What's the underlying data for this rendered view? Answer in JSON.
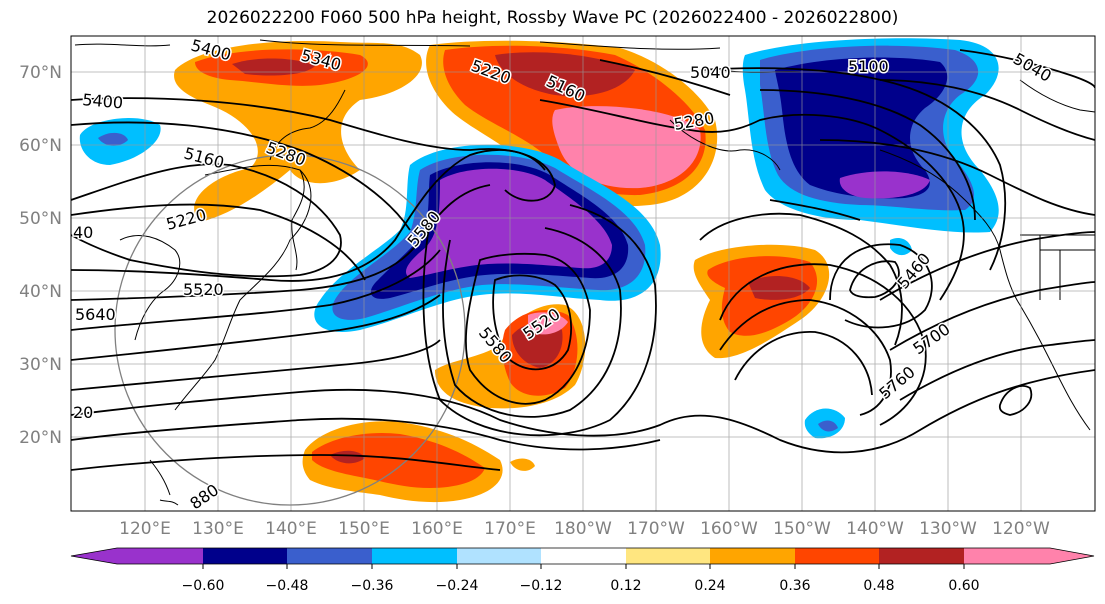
{
  "title": "2026022200 F060 500 hPa height, Rossby Wave PC (2026022400 - 2026022800)",
  "lat_labels": [
    "70°N",
    "60°N",
    "50°N",
    "40°N",
    "30°N",
    "20°N"
  ],
  "lon_labels": [
    "120°E",
    "130°E",
    "140°E",
    "150°E",
    "160°E",
    "170°E",
    "180°W",
    "170°W",
    "160°W",
    "150°W",
    "140°W",
    "130°W",
    "120°W"
  ],
  "contour_labels": [
    "5400",
    "5340",
    "5220",
    "5160",
    "5040",
    "5100",
    "5040",
    "5400",
    "5160",
    "5280",
    "5280",
    "5220",
    "40",
    "5580",
    "5520",
    "5520",
    "5640",
    "5580",
    "5460",
    "5700",
    "5760",
    "20",
    "880"
  ],
  "colorbar": {
    "ticks": [
      "−0.60",
      "−0.48",
      "−0.36",
      "−0.24",
      "−0.12",
      "0.12",
      "0.24",
      "0.36",
      "0.48",
      "0.60"
    ],
    "colors": [
      "#9932cc",
      "#00008b",
      "#3a5fcd",
      "#00bfff",
      "#b0e2ff",
      "#ffffff",
      "#ffe680",
      "#ffa500",
      "#ff4500",
      "#b22222",
      "#ff82ab"
    ]
  }
}
